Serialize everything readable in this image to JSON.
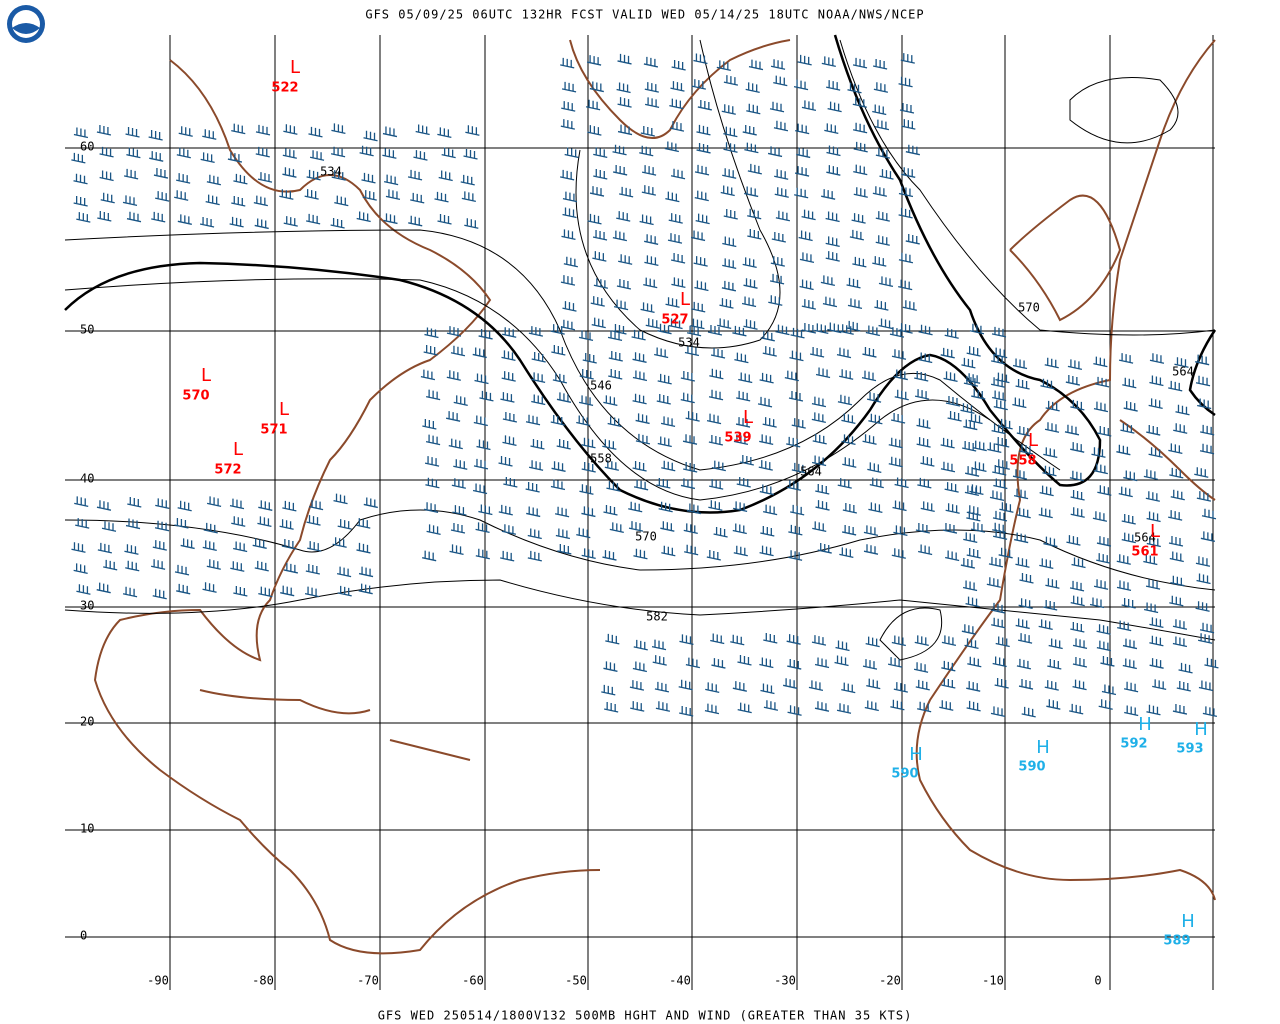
{
  "header": {
    "title": "GFS 05/09/25 06UTC 132HR FCST VALID WED 05/14/25 18UTC NOAA/NWS/NCEP"
  },
  "footer": {
    "text": "GFS WED 250514/1800V132 500MB HGHT AND WIND (GREATER THAN 35 KTS)"
  },
  "grid": {
    "lat_labels": [
      60,
      50,
      40,
      30,
      20,
      10,
      0
    ],
    "lon_labels": [
      -90,
      -80,
      -70,
      -60,
      -50,
      -40,
      -30,
      -20,
      -10,
      0
    ]
  },
  "contour_labels": [
    534,
    534,
    546,
    558,
    564,
    570,
    582,
    570,
    564,
    564
  ],
  "lows": [
    {
      "letter": "L",
      "value": 522
    },
    {
      "letter": "L",
      "value": 527
    },
    {
      "letter": "L",
      "value": 539
    },
    {
      "letter": "L",
      "value": 570
    },
    {
      "letter": "L",
      "value": 571
    },
    {
      "letter": "L",
      "value": 572
    },
    {
      "letter": "L",
      "value": 558
    },
    {
      "letter": "L",
      "value": 561
    }
  ],
  "highs": [
    {
      "letter": "H",
      "value": 590
    },
    {
      "letter": "H",
      "value": 590
    },
    {
      "letter": "H",
      "value": 592
    },
    {
      "letter": "H",
      "value": 593
    },
    {
      "letter": "H",
      "value": 589
    }
  ]
}
